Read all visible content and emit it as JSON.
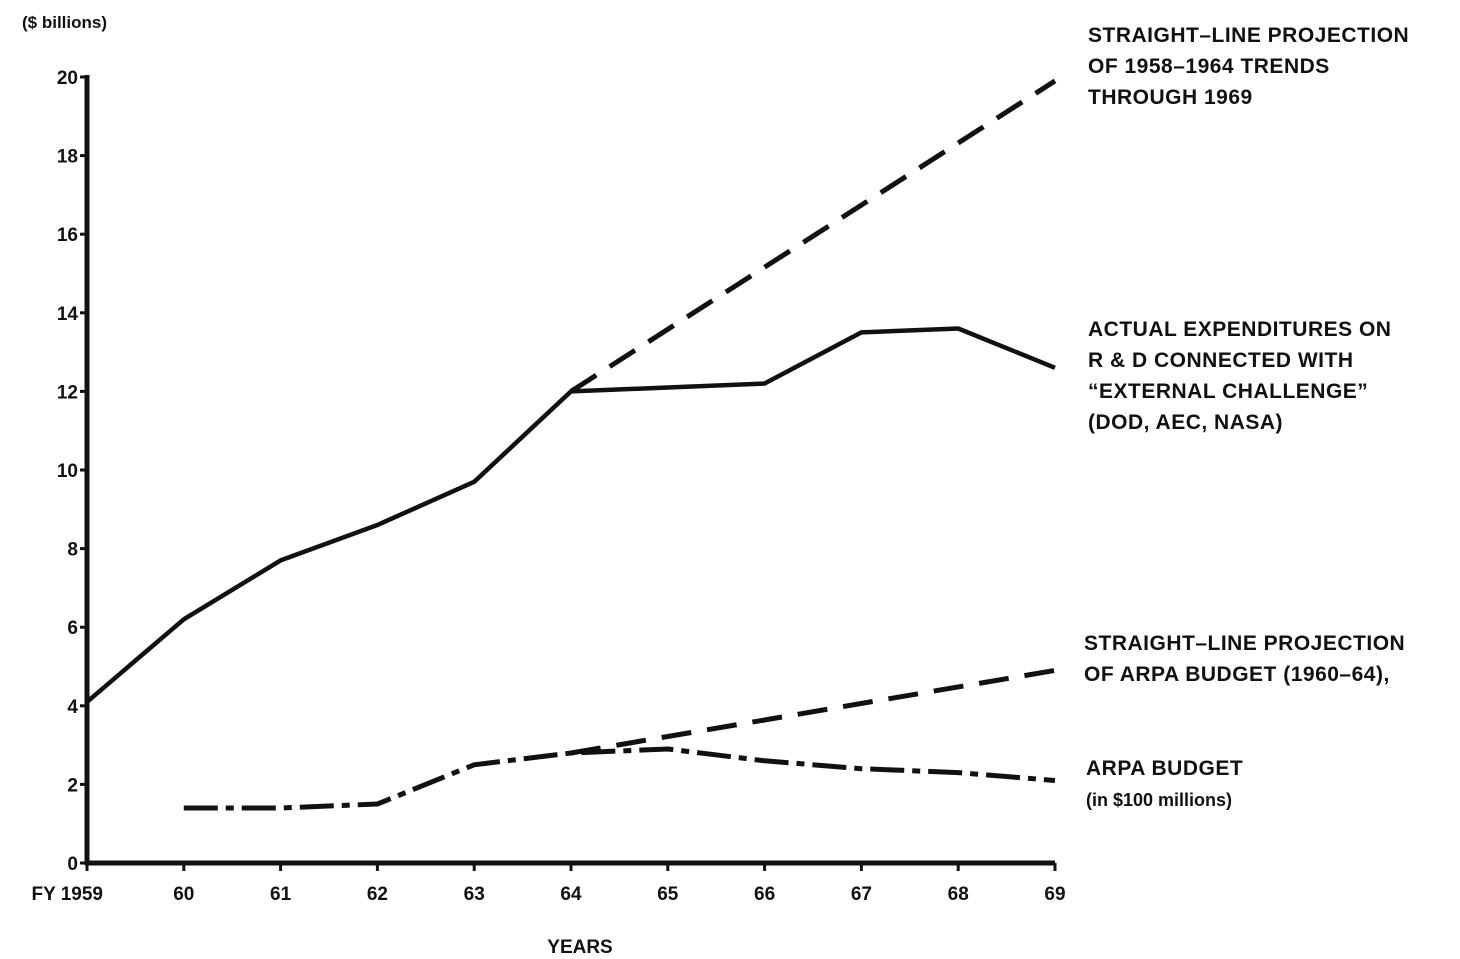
{
  "chart_data": {
    "type": "line",
    "unit_label": "($ billions)",
    "xlabel": "YEARS",
    "ylabel": "",
    "ylim": [
      0,
      20
    ],
    "xlim": [
      1959,
      1969
    ],
    "y_ticks": [
      0,
      2,
      4,
      6,
      8,
      10,
      12,
      14,
      16,
      18,
      20
    ],
    "x_ticks": [
      {
        "x": 1959,
        "label": "FY 1959"
      },
      {
        "x": 1960,
        "label": "60"
      },
      {
        "x": 1961,
        "label": "61"
      },
      {
        "x": 1962,
        "label": "62"
      },
      {
        "x": 1963,
        "label": "63"
      },
      {
        "x": 1964,
        "label": "64"
      },
      {
        "x": 1965,
        "label": "65"
      },
      {
        "x": 1966,
        "label": "66"
      },
      {
        "x": 1967,
        "label": "67"
      },
      {
        "x": 1968,
        "label": "68"
      },
      {
        "x": 1969,
        "label": "69"
      }
    ],
    "grid": false,
    "legend": "none",
    "series": [
      {
        "key": "projection-trend",
        "style": "dashed",
        "x": [
          1964,
          1969
        ],
        "y": [
          12.0,
          19.9
        ],
        "annotation": [
          "STRAIGHT–LINE PROJECTION",
          "OF 1958–1964 TRENDS",
          "THROUGH 1969"
        ]
      },
      {
        "key": "actual-expenditures",
        "style": "solid",
        "x": [
          1959,
          1960,
          1961,
          1962,
          1963,
          1964,
          1965,
          1966,
          1967,
          1968,
          1969
        ],
        "y": [
          4.1,
          6.2,
          7.7,
          8.6,
          9.7,
          12.0,
          12.1,
          12.2,
          13.5,
          13.6,
          12.6
        ],
        "annotation": [
          "ACTUAL EXPENDITURES ON",
          "R & D CONNECTED WITH",
          "“EXTERNAL CHALLENGE”",
          "(DOD, AEC, NASA)"
        ]
      },
      {
        "key": "projection-arpa",
        "style": "dashed",
        "x": [
          1964,
          1969
        ],
        "y": [
          2.8,
          4.9
        ],
        "annotation": [
          "STRAIGHT–LINE PROJECTION",
          "OF ARPA BUDGET (1960–64),"
        ]
      },
      {
        "key": "arpa-budget",
        "style": "dash-dot",
        "x": [
          1960,
          1961,
          1962,
          1963,
          1964,
          1965,
          1966,
          1967,
          1968,
          1969
        ],
        "y": [
          1.4,
          1.4,
          1.5,
          2.5,
          2.8,
          2.9,
          2.6,
          2.4,
          2.3,
          2.1
        ],
        "annotation": [
          "ARPA BUDGET",
          "(in $100 millions)"
        ]
      }
    ]
  }
}
